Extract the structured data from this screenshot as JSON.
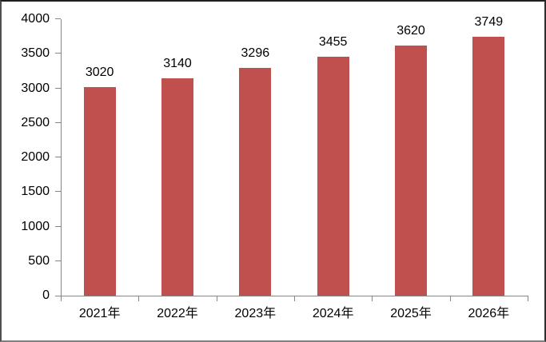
{
  "chart_data": {
    "type": "bar",
    "title": "",
    "categories": [
      "2021年",
      "2022年",
      "2023年",
      "2024年",
      "2025年",
      "2026年"
    ],
    "values": [
      3020,
      3140,
      3296,
      3455,
      3620,
      3749
    ],
    "yticks": [
      0,
      500,
      1000,
      1500,
      2000,
      2500,
      3000,
      3500,
      4000
    ],
    "ylim": [
      0,
      4000
    ],
    "xlabel": "",
    "ylabel": "",
    "legend": "none",
    "grid": false,
    "data_labels_shown": true,
    "colors": {
      "bar": "#C0504D",
      "axis": "#868686",
      "text": "#000000",
      "background": "#FFFFFF"
    }
  }
}
